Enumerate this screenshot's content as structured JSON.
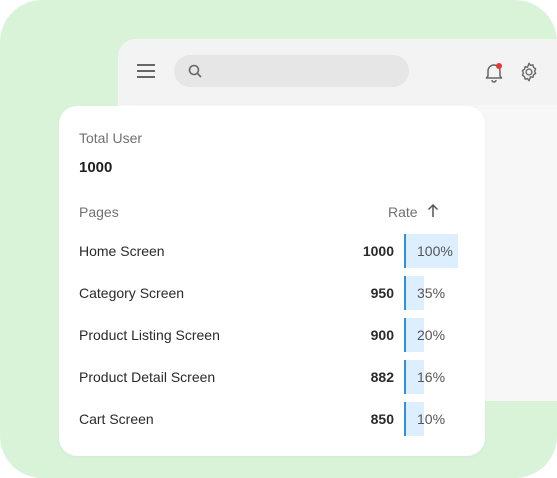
{
  "app": {
    "search": {
      "placeholder": "",
      "value": ""
    },
    "icons": {
      "menu": "menu-icon",
      "search": "search-icon",
      "notifications": "bell-icon",
      "settings": "gear-icon"
    },
    "notification_dot_color": "#e53935"
  },
  "card": {
    "total_label": "Total User",
    "total_value": "1000",
    "header": {
      "pages": "Pages",
      "rate": "Rate",
      "sort_icon": "arrow-up-icon"
    },
    "rows": [
      {
        "name": "Home Screen",
        "count": "1000",
        "rate": "100%",
        "fraction": 1.0
      },
      {
        "name": "Category Screen",
        "count": "950",
        "rate": "35%",
        "fraction": 0.35
      },
      {
        "name": "Product Listing Screen",
        "count": "900",
        "rate": "20%",
        "fraction": 0.2
      },
      {
        "name": "Product Detail Screen",
        "count": "882",
        "rate": "16%",
        "fraction": 0.16
      },
      {
        "name": "Cart Screen",
        "count": "850",
        "rate": "10%",
        "fraction": 0.1
      }
    ]
  },
  "colors": {
    "background": "#d9f3d9",
    "bar_fill": "#ddeeff",
    "bar_edge": "#2f8fe0"
  }
}
